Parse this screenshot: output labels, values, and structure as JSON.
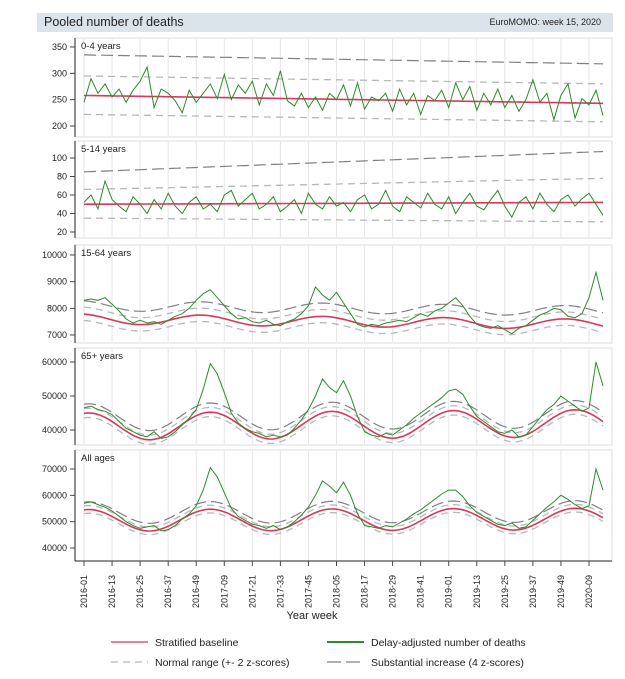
{
  "header": {
    "title": "Pooled number of deaths",
    "source": "EuroMOMO: week 15, 2020"
  },
  "colors": {
    "baseline": "#d6395a",
    "observed": "#2e8a2e",
    "normal_range": "#b8b8b8",
    "substantial": "#808080",
    "header_bg": "#dae4ea"
  },
  "chart_data": {
    "type": "line",
    "title": "Pooled number of deaths",
    "xlabel": "Year week",
    "x_start": "2016-01",
    "x_end": "2020-15",
    "sample_step_weeks": 3,
    "x_ticks": [
      "2016-01",
      "2016-13",
      "2016-25",
      "2016-37",
      "2016-49",
      "2017-09",
      "2017-21",
      "2017-33",
      "2017-45",
      "2018-05",
      "2018-17",
      "2018-29",
      "2018-41",
      "2019-01",
      "2019-13",
      "2019-25",
      "2019-37",
      "2019-49",
      "2020-09"
    ],
    "grid": "vertical",
    "legend": {
      "placement": "bottom",
      "items": [
        {
          "label": "Stratified baseline",
          "key": "baseline"
        },
        {
          "label": "Delay-adjusted number of deaths",
          "key": "observed"
        },
        {
          "label": "Normal range (+- 2 z-scores)",
          "key": "normal_range"
        },
        {
          "label": "Substantial increase (4 z-scores)",
          "key": "substantial"
        }
      ]
    },
    "panels": [
      {
        "label": "0-4 years",
        "yticks": [
          350,
          300,
          250,
          200
        ],
        "baseline": {
          "mean": [
            258,
            243
          ],
          "amplitude": 0,
          "peak_week": 0
        },
        "normal_upper_offset": [
          37,
          37
        ],
        "normal_lower_offset": [
          36,
          35
        ],
        "substantial_offset": [
          77,
          75
        ],
        "observed": [
          245,
          290,
          262,
          280,
          255,
          270,
          245,
          268,
          285,
          312,
          235,
          270,
          262,
          248,
          225,
          268,
          245,
          262,
          280,
          252,
          298,
          250,
          278,
          262,
          285,
          240,
          280,
          258,
          305,
          248,
          238,
          262,
          235,
          255,
          230,
          262,
          250,
          278,
          238,
          282,
          232,
          255,
          248,
          262,
          228,
          270,
          240,
          262,
          222,
          258,
          248,
          268,
          235,
          282,
          250,
          275,
          230,
          262,
          240,
          270,
          235,
          258,
          228,
          250,
          288,
          245,
          262,
          212,
          258,
          280,
          215,
          252,
          240,
          268,
          220
        ]
      },
      {
        "label": "5-14 years",
        "yticks": [
          100,
          80,
          60,
          40,
          20
        ],
        "baseline": {
          "mean": [
            50,
            52
          ],
          "amplitude": 0,
          "peak_week": 0
        },
        "normal_upper_offset": [
          16,
          26
        ],
        "normal_lower_offset": [
          15,
          21
        ],
        "substantial_offset": [
          35,
          55
        ],
        "observed": [
          52,
          60,
          45,
          75,
          55,
          48,
          42,
          58,
          50,
          40,
          55,
          45,
          62,
          48,
          40,
          52,
          58,
          45,
          50,
          42,
          60,
          65,
          48,
          55,
          62,
          45,
          50,
          58,
          42,
          48,
          55,
          40,
          62,
          50,
          45,
          58,
          48,
          52,
          42,
          55,
          60,
          45,
          50,
          65,
          48,
          42,
          58,
          52,
          46,
          62,
          50,
          45,
          58,
          40,
          52,
          62,
          48,
          44,
          55,
          65,
          48,
          36,
          52,
          58,
          45,
          62,
          50,
          42,
          55,
          60,
          48,
          56,
          62,
          50,
          38
        ]
      },
      {
        "label": "15-64 years",
        "yticks": [
          10000,
          9000,
          8000,
          7000
        ],
        "baseline": {
          "mean": [
            7600,
            7400
          ],
          "amplitude": 190,
          "peak_week": 50
        },
        "normal_upper_offset": [
          260,
          260
        ],
        "normal_lower_offset": [
          240,
          240
        ],
        "substantial_offset": [
          500,
          500
        ],
        "observed": [
          8300,
          8350,
          8300,
          8400,
          8150,
          7900,
          7600,
          7450,
          7550,
          7450,
          7500,
          7400,
          7550,
          7700,
          7800,
          8000,
          8300,
          8550,
          8700,
          8400,
          8100,
          7800,
          7600,
          7650,
          7500,
          7450,
          7550,
          7400,
          7350,
          7500,
          7600,
          7800,
          8100,
          8800,
          8500,
          8300,
          8600,
          8200,
          7800,
          7400,
          7300,
          7400,
          7350,
          7450,
          7500,
          7550,
          7500,
          7650,
          7800,
          7700,
          7900,
          8000,
          8200,
          8400,
          8100,
          7700,
          7400,
          7300,
          7250,
          7350,
          7200,
          7050,
          7250,
          7350,
          7550,
          7750,
          7850,
          8000,
          7950,
          7700,
          7650,
          7800,
          8400,
          9350,
          8300
        ]
      },
      {
        "label": "65+ years",
        "yticks": [
          60000,
          50000,
          40000
        ],
        "baseline": {
          "mean": [
            41000,
            42000
          ],
          "amplitude": 4000,
          "peak_week": 2
        },
        "normal_upper_offset": [
          1400,
          1400
        ],
        "normal_lower_offset": [
          1300,
          1300
        ],
        "substantial_offset": [
          2700,
          2700
        ],
        "observed": [
          46500,
          47000,
          46000,
          45500,
          44500,
          42500,
          40500,
          39500,
          38500,
          38000,
          39500,
          37500,
          38000,
          39500,
          41500,
          43500,
          46000,
          52000,
          59500,
          56500,
          51000,
          45000,
          42000,
          40500,
          39500,
          39000,
          38000,
          38500,
          38000,
          38500,
          40500,
          43000,
          46000,
          50000,
          55000,
          52500,
          51000,
          54500,
          50000,
          44000,
          39500,
          38500,
          38000,
          39000,
          38500,
          40000,
          41500,
          43500,
          45000,
          46500,
          48000,
          49500,
          51500,
          52000,
          50500,
          47000,
          44000,
          42500,
          41000,
          39500,
          39000,
          40000,
          38000,
          38500,
          41000,
          43500,
          46000,
          47500,
          50000,
          48500,
          47000,
          45500,
          46500,
          60000,
          53000
        ]
      },
      {
        "label": "All ages",
        "yticks": [
          70000,
          60000,
          50000,
          40000
        ],
        "baseline": {
          "mean": [
            50500,
            51000
          ],
          "amplitude": 4100,
          "peak_week": 2
        },
        "normal_upper_offset": [
          1500,
          1500
        ],
        "normal_lower_offset": [
          1400,
          1400
        ],
        "substantial_offset": [
          2900,
          2900
        ],
        "observed": [
          57000,
          57500,
          56500,
          55500,
          54000,
          52000,
          50000,
          48500,
          47500,
          48000,
          48500,
          46500,
          47000,
          48500,
          51000,
          53000,
          56000,
          62000,
          70500,
          67000,
          61000,
          55000,
          52000,
          50500,
          49000,
          48500,
          47500,
          48500,
          47000,
          48000,
          50000,
          52500,
          55500,
          60000,
          65500,
          63500,
          61000,
          65000,
          60000,
          53000,
          48500,
          48000,
          47500,
          48500,
          48000,
          49500,
          51000,
          53000,
          54500,
          56500,
          58500,
          60500,
          62000,
          62000,
          59500,
          56000,
          53500,
          52000,
          50500,
          49000,
          48500,
          49500,
          47500,
          48000,
          50500,
          53000,
          55500,
          57500,
          60000,
          58500,
          56500,
          55000,
          56000,
          70000,
          62000
        ]
      }
    ]
  }
}
